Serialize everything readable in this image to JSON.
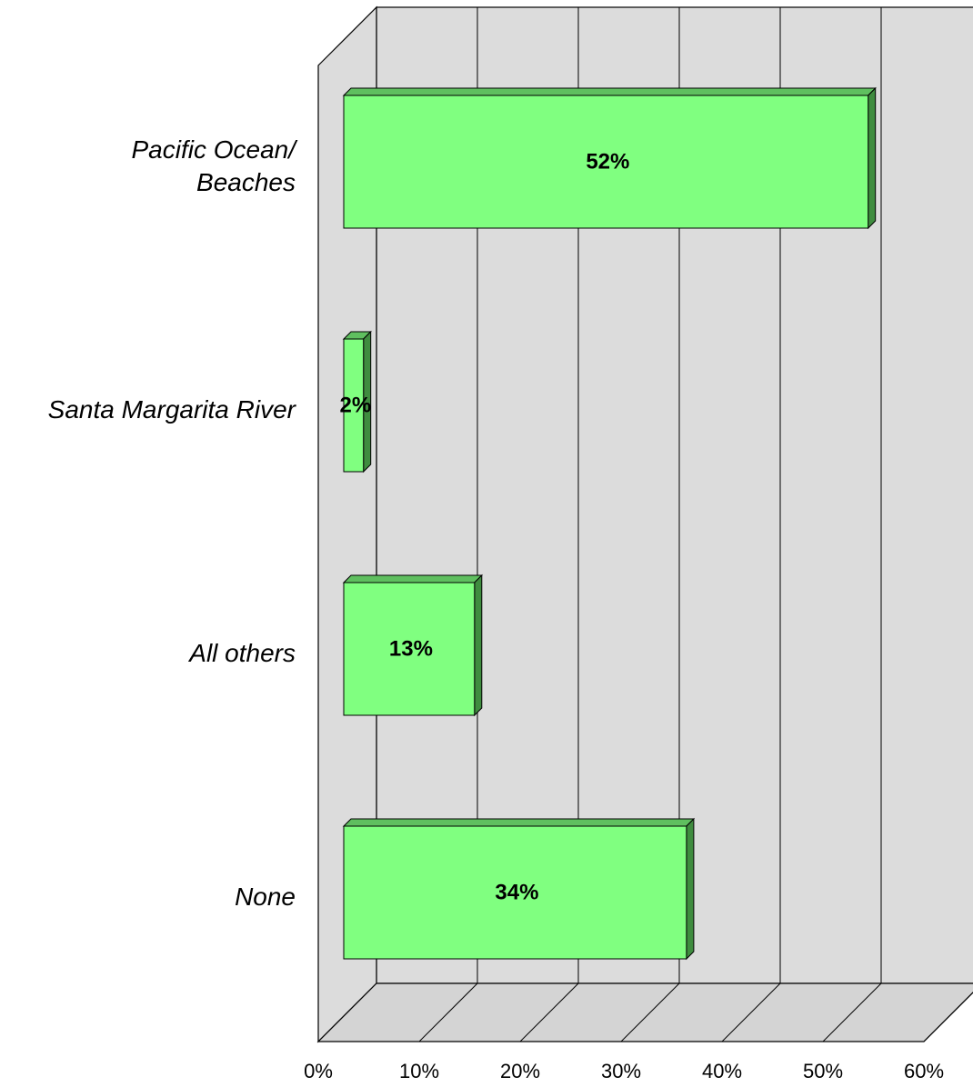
{
  "chart_data": {
    "type": "bar",
    "orientation": "horizontal",
    "three_d": true,
    "categories": [
      "Pacific Ocean/\nBeaches",
      "Santa Margarita River",
      "All others",
      "None"
    ],
    "values": [
      52,
      2,
      13,
      34
    ],
    "data_labels": [
      "52%",
      "2%",
      "13%",
      "34%"
    ],
    "xlim": [
      0,
      60
    ],
    "xticks": [
      "0%",
      "10%",
      "20%",
      "30%",
      "40%",
      "50%",
      "60%"
    ],
    "grid": true,
    "legend": "none",
    "colors": {
      "bar_face": "#80ff80",
      "bar_side": "#3f8c3f",
      "bar_top": "#5fbf5f",
      "wall": "#dcdcdc",
      "floor": "#d4d4d4",
      "gridline": "#000000"
    }
  }
}
